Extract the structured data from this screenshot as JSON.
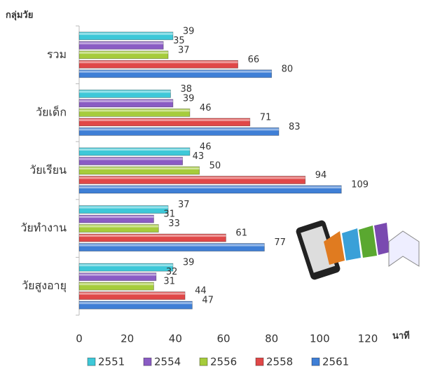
{
  "chart_data": {
    "type": "hbar",
    "y_axis_label": "กลุ่มวัย",
    "x_axis_label": "นาที",
    "categories": [
      "รวม",
      "วัยเด็ก",
      "วัยเรียน",
      "วัยทำงาน",
      "วัยสูงอายุ"
    ],
    "series": [
      {
        "name": "2551",
        "color": "#3ec8d8",
        "values": [
          39,
          38,
          46,
          37,
          39
        ]
      },
      {
        "name": "2554",
        "color": "#8a5cc4",
        "values": [
          35,
          39,
          43,
          31,
          32
        ]
      },
      {
        "name": "2556",
        "color": "#a6cc3c",
        "values": [
          37,
          46,
          50,
          33,
          31
        ]
      },
      {
        "name": "2558",
        "color": "#e04848",
        "values": [
          66,
          71,
          94,
          61,
          44
        ]
      },
      {
        "name": "2561",
        "color": "#3f7fd6",
        "values": [
          80,
          83,
          109,
          77,
          47
        ]
      }
    ],
    "xlim": [
      0,
      120
    ],
    "xticks": [
      0,
      20,
      40,
      60,
      80,
      100,
      120
    ],
    "legend": "bottom"
  }
}
